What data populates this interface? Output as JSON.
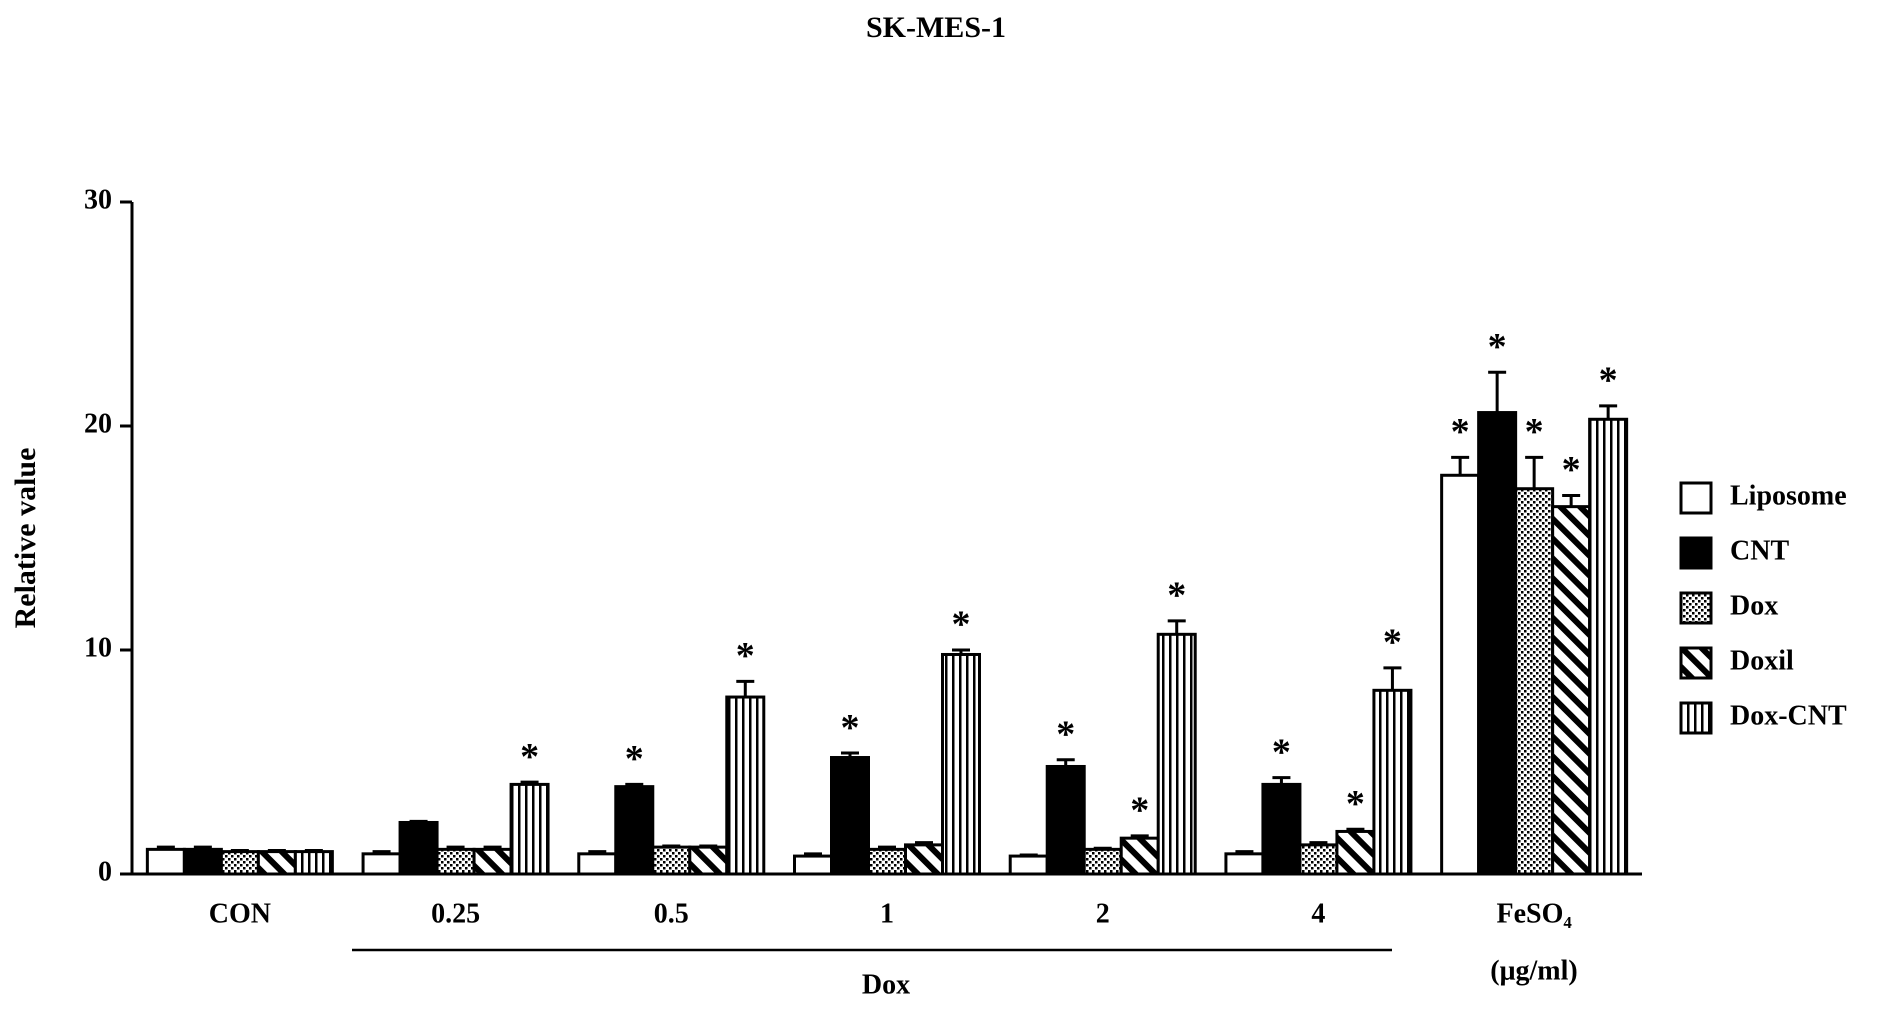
{
  "chart_data": {
    "type": "bar",
    "title": "SK-MES-1",
    "y_label": "Relative value",
    "categories": [
      "CON",
      "0.25",
      "0.5",
      "1",
      "2",
      "4",
      "FeSO₄"
    ],
    "group_label": "Dox",
    "unit_label": "(μg/ml)",
    "ylim": [
      0,
      30
    ],
    "yticks": [
      0,
      10,
      20,
      30
    ],
    "series": [
      {
        "name": "Liposome",
        "color": "#ffffff",
        "pattern": "none",
        "values": [
          1.1,
          0.9,
          0.9,
          0.8,
          0.8,
          0.9,
          17.8
        ],
        "errors": [
          0.1,
          0.1,
          0.1,
          0.1,
          0.05,
          0.1,
          0.8
        ],
        "significance": [
          null,
          null,
          null,
          null,
          null,
          null,
          "*"
        ]
      },
      {
        "name": "CNT",
        "color": "#000000",
        "pattern": "solid",
        "values": [
          1.1,
          2.3,
          3.9,
          5.2,
          4.8,
          4.0,
          20.6
        ],
        "errors": [
          0.1,
          0.05,
          0.1,
          0.2,
          0.3,
          0.3,
          1.8
        ],
        "significance": [
          null,
          null,
          "*",
          "*",
          "*",
          "*",
          "*"
        ]
      },
      {
        "name": "Dox",
        "color": "#ffffff",
        "pattern": "dots",
        "values": [
          1.0,
          1.1,
          1.2,
          1.1,
          1.1,
          1.3,
          17.2
        ],
        "errors": [
          0.05,
          0.1,
          0.05,
          0.1,
          0.05,
          0.1,
          1.4
        ],
        "significance": [
          null,
          null,
          null,
          null,
          null,
          null,
          "*"
        ]
      },
      {
        "name": "Doxil",
        "color": "#ffffff",
        "pattern": "diagonal",
        "values": [
          1.0,
          1.1,
          1.2,
          1.3,
          1.6,
          1.9,
          16.4
        ],
        "errors": [
          0.05,
          0.1,
          0.05,
          0.1,
          0.1,
          0.1,
          0.5
        ],
        "significance": [
          null,
          null,
          null,
          null,
          "*",
          "*",
          "*"
        ]
      },
      {
        "name": "Dox-CNT",
        "color": "#ffffff",
        "pattern": "vertical",
        "values": [
          1.0,
          4.0,
          7.9,
          9.8,
          10.7,
          8.2,
          20.3
        ],
        "errors": [
          0.05,
          0.1,
          0.7,
          0.2,
          0.6,
          1.0,
          0.6
        ],
        "significance": [
          null,
          "*",
          "*",
          "*",
          "*",
          "*",
          "*"
        ]
      }
    ]
  }
}
